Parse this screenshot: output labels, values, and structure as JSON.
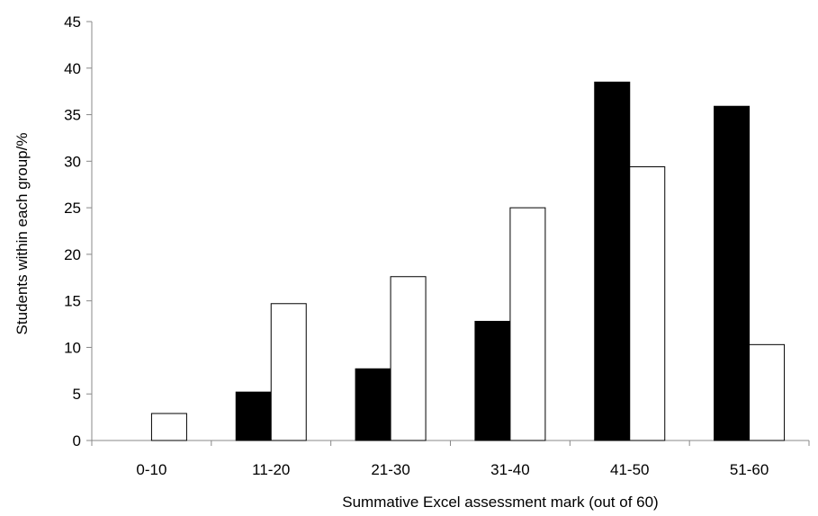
{
  "chart_data": {
    "type": "bar",
    "title": "",
    "xlabel": "Summative Excel assessment mark (out of 60)",
    "ylabel": "Students within each group/%",
    "ylim": [
      0,
      45
    ],
    "yticks": [
      0,
      5,
      10,
      15,
      20,
      25,
      30,
      35,
      40,
      45
    ],
    "categories": [
      "0-10",
      "11-20",
      "21-30",
      "31-40",
      "41-50",
      "51-60"
    ],
    "series": [
      {
        "values": [
          0,
          5.2,
          7.7,
          12.8,
          38.5,
          35.9
        ],
        "color": "#000000"
      },
      {
        "values": [
          2.9,
          14.7,
          17.6,
          25.0,
          29.4,
          10.3
        ],
        "color": "#ffffff"
      }
    ],
    "grid": false,
    "legend": "none"
  }
}
